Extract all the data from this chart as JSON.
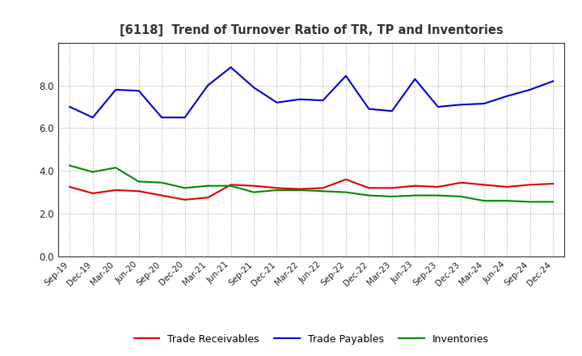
{
  "title": "[6118]  Trend of Turnover Ratio of TR, TP and Inventories",
  "labels": [
    "Sep-19",
    "Dec-19",
    "Mar-20",
    "Jun-20",
    "Sep-20",
    "Dec-20",
    "Mar-21",
    "Jun-21",
    "Sep-21",
    "Dec-21",
    "Mar-22",
    "Jun-22",
    "Sep-22",
    "Dec-22",
    "Mar-23",
    "Jun-23",
    "Sep-23",
    "Dec-23",
    "Mar-24",
    "Jun-24",
    "Sep-24",
    "Dec-24"
  ],
  "trade_receivables": [
    3.25,
    2.95,
    3.1,
    3.05,
    2.85,
    2.65,
    2.75,
    3.35,
    3.3,
    3.2,
    3.15,
    3.2,
    3.6,
    3.2,
    3.2,
    3.3,
    3.25,
    3.45,
    3.35,
    3.25,
    3.35,
    3.4
  ],
  "trade_payables": [
    7.0,
    6.5,
    7.8,
    7.75,
    6.5,
    6.5,
    8.0,
    8.85,
    7.9,
    7.2,
    7.35,
    7.3,
    8.45,
    6.9,
    6.8,
    8.3,
    7.0,
    7.1,
    7.15,
    7.5,
    7.8,
    8.2
  ],
  "inventories": [
    4.25,
    3.95,
    4.15,
    3.5,
    3.45,
    3.2,
    3.3,
    3.3,
    3.0,
    3.1,
    3.1,
    3.05,
    3.0,
    2.85,
    2.8,
    2.85,
    2.85,
    2.8,
    2.6,
    2.6,
    2.55,
    2.55
  ],
  "tr_color": "#dd0000",
  "tp_color": "#0000cc",
  "inv_color": "#008800",
  "ylim": [
    0.0,
    10.0
  ],
  "yticks": [
    0.0,
    2.0,
    4.0,
    6.0,
    8.0
  ],
  "background_color": "#ffffff",
  "grid_color": "#888888",
  "title_color": "#333333",
  "legend_labels": [
    "Trade Receivables",
    "Trade Payables",
    "Inventories"
  ]
}
